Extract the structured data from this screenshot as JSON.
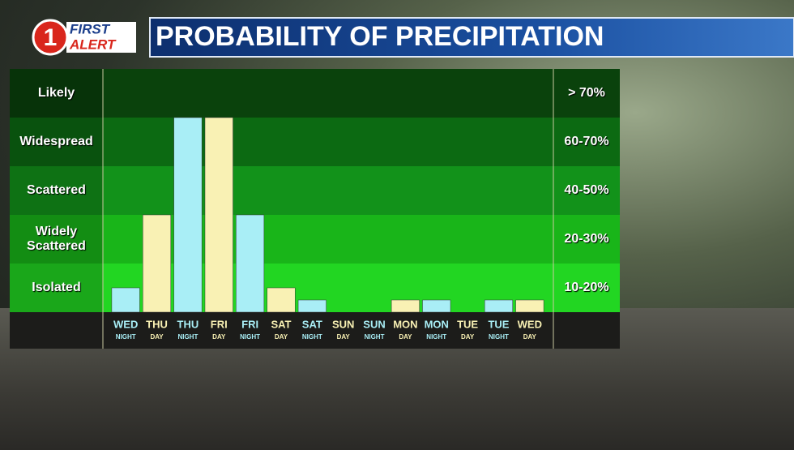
{
  "logo": {
    "number": "1",
    "line1": "FIRST",
    "line2": "ALERT"
  },
  "chart_data": {
    "type": "bar",
    "title": "PROBABILITY OF PRECIPITATION",
    "categories": [
      "WED",
      "THU",
      "THU",
      "FRI",
      "FRI",
      "SAT",
      "SAT",
      "SUN",
      "SUN",
      "MON",
      "MON",
      "TUE",
      "TUE",
      "WED"
    ],
    "periods": [
      "NIGHT",
      "DAY",
      "NIGHT",
      "DAY",
      "NIGHT",
      "DAY",
      "NIGHT",
      "DAY",
      "NIGHT",
      "DAY",
      "NIGHT",
      "DAY",
      "NIGHT",
      "DAY"
    ],
    "values": [
      0.5,
      2,
      4,
      4,
      2,
      0.5,
      0.25,
      0,
      0,
      0.25,
      0.25,
      0,
      0.25,
      0.25
    ],
    "colors": [
      "#a9eef6",
      "#f9f1b4",
      "#a9eef6",
      "#f9f1b4",
      "#a9eef6",
      "#f9f1b4",
      "#a9eef6",
      "#f9f1b4",
      "#a9eef6",
      "#f9f1b4",
      "#a9eef6",
      "#f9f1b4",
      "#a9eef6",
      "#f9f1b4"
    ],
    "ylim": [
      0,
      5
    ],
    "bands": [
      {
        "label": "Isolated",
        "range": "10-20%",
        "color": "#22d622"
      },
      {
        "label": "Widely Scattered",
        "range": "20-30%",
        "color": "#19b519"
      },
      {
        "label": "Scattered",
        "range": "40-50%",
        "color": "#12921a"
      },
      {
        "label": "Widespread",
        "range": "60-70%",
        "color": "#0c6a12"
      },
      {
        "label": "Likely",
        "range": "> 70%",
        "color": "#0a420c"
      }
    ]
  }
}
